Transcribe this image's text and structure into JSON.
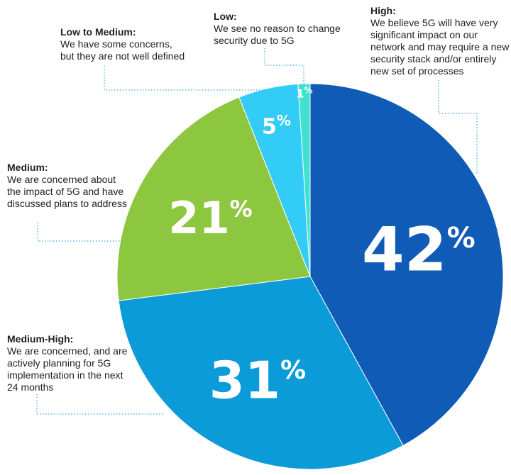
{
  "chart_data": {
    "type": "pie",
    "title": "",
    "start_angle_deg": 0,
    "direction": "clockwise",
    "slices": [
      {
        "key": "high",
        "label": "High:",
        "value": 42,
        "value_label": "42",
        "color": "#0f5bb5",
        "description": "We believe 5G will have very significant impact on our network and may require a new security stack and/or entirely new set of processes"
      },
      {
        "key": "medium_high",
        "label": "Medium-High:",
        "value": 31,
        "value_label": "31",
        "color": "#0a9bd8",
        "description": "We are concerned, and are actively planning for 5G implementation in the next 24 months"
      },
      {
        "key": "medium",
        "label": "Medium:",
        "value": 21,
        "value_label": "21",
        "color": "#8dc63f",
        "description": "We are concerned about the impact of 5G and have discussed plans to address"
      },
      {
        "key": "low_to_medium",
        "label": "Low to Medium:",
        "value": 5,
        "value_label": "5",
        "color": "#32ccf7",
        "description": "We have some concerns, but they are not well defined"
      },
      {
        "key": "low",
        "label": "Low:",
        "value": 1,
        "value_label": "1",
        "color": "#3fe2cf",
        "description": "We see no reason to change security due to 5G"
      }
    ],
    "percent_symbol": "%"
  }
}
